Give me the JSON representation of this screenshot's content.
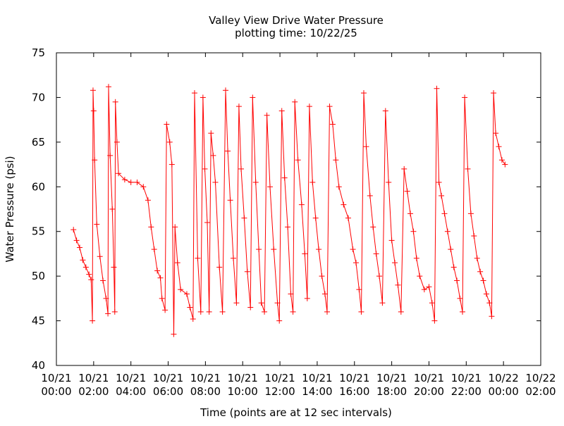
{
  "chart_data": {
    "type": "line",
    "title": "Valley View Drive Water Pressure",
    "subtitle": "plotting time: 10/22/25",
    "xlabel": "Time (points are at 12 sec intervals)",
    "ylabel": "Water Pressure (psi)",
    "ylim": [
      40,
      75
    ],
    "xlim": [
      "10/21 00:00",
      "10/22 02:00"
    ],
    "grid": false,
    "legend": "none",
    "marker": "plus",
    "color": "#ff0000",
    "y_ticks": [
      "40",
      "45",
      "50",
      "55",
      "60",
      "65",
      "70",
      "75"
    ],
    "x_ticks": [
      {
        "date": "10/21",
        "time": "00:00"
      },
      {
        "date": "10/21",
        "time": "02:00"
      },
      {
        "date": "10/21",
        "time": "04:00"
      },
      {
        "date": "10/21",
        "time": "06:00"
      },
      {
        "date": "10/21",
        "time": "08:00"
      },
      {
        "date": "10/21",
        "time": "10:00"
      },
      {
        "date": "10/21",
        "time": "12:00"
      },
      {
        "date": "10/21",
        "time": "14:00"
      },
      {
        "date": "10/21",
        "time": "16:00"
      },
      {
        "date": "10/21",
        "time": "18:00"
      },
      {
        "date": "10/21",
        "time": "20:00"
      },
      {
        "date": "10/21",
        "time": "22:00"
      },
      {
        "date": "10/22",
        "time": "00:00"
      },
      {
        "date": "10/22",
        "time": "02:00"
      }
    ],
    "series": [
      {
        "points": [
          [
            "10/21 00:55",
            55.2
          ],
          [
            "10/21 01:05",
            54.0
          ],
          [
            "10/21 01:15",
            53.2
          ],
          [
            "10/21 01:25",
            51.8
          ],
          [
            "10/21 01:35",
            51.0
          ],
          [
            "10/21 01:45",
            50.2
          ],
          [
            "10/21 01:52",
            49.6
          ],
          [
            "10/21 01:56",
            45.0
          ],
          [
            "10/21 01:58",
            70.8
          ],
          [
            "10/21 02:00",
            68.5
          ],
          [
            "10/21 02:03",
            63.0
          ],
          [
            "10/21 02:10",
            55.8
          ],
          [
            "10/21 02:20",
            52.2
          ],
          [
            "10/21 02:30",
            49.5
          ],
          [
            "10/21 02:40",
            47.5
          ],
          [
            "10/21 02:46",
            45.8
          ],
          [
            "10/21 02:48",
            71.2
          ],
          [
            "10/21 02:53",
            63.5
          ],
          [
            "10/21 03:00",
            57.5
          ],
          [
            "10/21 03:05",
            51.0
          ],
          [
            "10/21 03:08",
            46.0
          ],
          [
            "10/21 03:10",
            69.5
          ],
          [
            "10/21 03:15",
            65.0
          ],
          [
            "10/21 03:20",
            61.5
          ],
          [
            "10/21 03:40",
            60.8
          ],
          [
            "10/21 04:00",
            60.5
          ],
          [
            "10/21 04:20",
            60.5
          ],
          [
            "10/21 04:40",
            60.0
          ],
          [
            "10/21 04:55",
            58.5
          ],
          [
            "10/21 05:05",
            55.5
          ],
          [
            "10/21 05:15",
            53.0
          ],
          [
            "10/21 05:25",
            50.6
          ],
          [
            "10/21 05:35",
            49.8
          ],
          [
            "10/21 05:40",
            47.5
          ],
          [
            "10/21 05:50",
            46.2
          ],
          [
            "10/21 05:55",
            67.0
          ],
          [
            "10/21 06:05",
            65.0
          ],
          [
            "10/21 06:12",
            62.5
          ],
          [
            "10/21 06:18",
            43.5
          ],
          [
            "10/21 06:22",
            55.5
          ],
          [
            "10/21 06:30",
            51.5
          ],
          [
            "10/21 06:40",
            48.5
          ],
          [
            "10/21 07:00",
            48.0
          ],
          [
            "10/21 07:10",
            46.5
          ],
          [
            "10/21 07:20",
            45.2
          ],
          [
            "10/21 07:25",
            70.5
          ],
          [
            "10/21 07:35",
            52.0
          ],
          [
            "10/21 07:45",
            46.0
          ],
          [
            "10/21 07:52",
            70.0
          ],
          [
            "10/21 07:58",
            62.0
          ],
          [
            "10/21 08:06",
            56.0
          ],
          [
            "10/21 08:12",
            46.0
          ],
          [
            "10/21 08:18",
            66.0
          ],
          [
            "10/21 08:25",
            63.5
          ],
          [
            "10/21 08:32",
            60.5
          ],
          [
            "10/21 08:45",
            51.0
          ],
          [
            "10/21 08:55",
            46.0
          ],
          [
            "10/21 09:05",
            70.8
          ],
          [
            "10/21 09:12",
            64.0
          ],
          [
            "10/21 09:20",
            58.5
          ],
          [
            "10/21 09:30",
            52.0
          ],
          [
            "10/21 09:40",
            47.0
          ],
          [
            "10/21 09:48",
            69.0
          ],
          [
            "10/21 09:55",
            62.0
          ],
          [
            "10/21 10:05",
            56.5
          ],
          [
            "10/21 10:15",
            50.5
          ],
          [
            "10/21 10:25",
            46.5
          ],
          [
            "10/21 10:32",
            70.0
          ],
          [
            "10/21 10:42",
            60.5
          ],
          [
            "10/21 10:52",
            53.0
          ],
          [
            "10/21 11:00",
            47.0
          ],
          [
            "10/21 11:10",
            46.0
          ],
          [
            "10/21 11:18",
            68.0
          ],
          [
            "10/21 11:28",
            60.0
          ],
          [
            "10/21 11:40",
            53.0
          ],
          [
            "10/21 11:52",
            47.0
          ],
          [
            "10/21 11:58",
            45.0
          ],
          [
            "10/21 12:06",
            68.5
          ],
          [
            "10/21 12:15",
            61.0
          ],
          [
            "10/21 12:25",
            55.5
          ],
          [
            "10/21 12:35",
            48.0
          ],
          [
            "10/21 12:42",
            46.0
          ],
          [
            "10/21 12:48",
            69.5
          ],
          [
            "10/21 12:58",
            63.0
          ],
          [
            "10/21 13:10",
            58.0
          ],
          [
            "10/21 13:20",
            52.5
          ],
          [
            "10/21 13:28",
            47.5
          ],
          [
            "10/21 13:35",
            69.0
          ],
          [
            "10/21 13:45",
            60.5
          ],
          [
            "10/21 13:55",
            56.5
          ],
          [
            "10/21 14:05",
            53.0
          ],
          [
            "10/21 14:15",
            50.0
          ],
          [
            "10/21 14:25",
            48.0
          ],
          [
            "10/21 14:32",
            46.0
          ],
          [
            "10/21 14:40",
            69.0
          ],
          [
            "10/21 14:50",
            67.0
          ],
          [
            "10/21 15:00",
            63.0
          ],
          [
            "10/21 15:10",
            60.0
          ],
          [
            "10/21 15:25",
            58.0
          ],
          [
            "10/21 15:40",
            56.5
          ],
          [
            "10/21 15:55",
            53.0
          ],
          [
            "10/21 16:05",
            51.5
          ],
          [
            "10/21 16:15",
            48.5
          ],
          [
            "10/21 16:22",
            46.0
          ],
          [
            "10/21 16:30",
            70.5
          ],
          [
            "10/21 16:38",
            64.5
          ],
          [
            "10/21 16:50",
            59.0
          ],
          [
            "10/21 17:00",
            55.5
          ],
          [
            "10/21 17:10",
            52.5
          ],
          [
            "10/21 17:20",
            50.0
          ],
          [
            "10/21 17:30",
            47.0
          ],
          [
            "10/21 17:40",
            68.5
          ],
          [
            "10/21 17:50",
            60.5
          ],
          [
            "10/21 18:00",
            54.0
          ],
          [
            "10/21 18:10",
            51.5
          ],
          [
            "10/21 18:20",
            49.0
          ],
          [
            "10/21 18:30",
            46.0
          ],
          [
            "10/21 18:40",
            62.0
          ],
          [
            "10/21 18:50",
            59.5
          ],
          [
            "10/21 19:00",
            57.0
          ],
          [
            "10/21 19:10",
            55.0
          ],
          [
            "10/21 19:20",
            52.0
          ],
          [
            "10/21 19:30",
            50.0
          ],
          [
            "10/21 19:45",
            48.5
          ],
          [
            "10/21 20:00",
            48.8
          ],
          [
            "10/21 20:10",
            47.0
          ],
          [
            "10/21 20:18",
            45.0
          ],
          [
            "10/21 20:25",
            71.0
          ],
          [
            "10/21 20:32",
            60.5
          ],
          [
            "10/21 20:40",
            59.0
          ],
          [
            "10/21 20:50",
            57.0
          ],
          [
            "10/21 21:00",
            55.0
          ],
          [
            "10/21 21:10",
            53.0
          ],
          [
            "10/21 21:20",
            51.0
          ],
          [
            "10/21 21:30",
            49.5
          ],
          [
            "10/21 21:40",
            47.5
          ],
          [
            "10/21 21:48",
            46.0
          ],
          [
            "10/21 21:55",
            70.0
          ],
          [
            "10/21 22:05",
            62.0
          ],
          [
            "10/21 22:15",
            57.0
          ],
          [
            "10/21 22:25",
            54.5
          ],
          [
            "10/21 22:35",
            52.0
          ],
          [
            "10/21 22:45",
            50.5
          ],
          [
            "10/21 22:55",
            49.5
          ],
          [
            "10/21 23:05",
            48.0
          ],
          [
            "10/21 23:15",
            47.0
          ],
          [
            "10/21 23:22",
            45.5
          ],
          [
            "10/21 23:28",
            70.5
          ],
          [
            "10/21 23:35",
            66.0
          ],
          [
            "10/21 23:45",
            64.5
          ],
          [
            "10/21 23:55",
            63.0
          ],
          [
            "10/22 00:05",
            62.5
          ]
        ]
      }
    ]
  }
}
